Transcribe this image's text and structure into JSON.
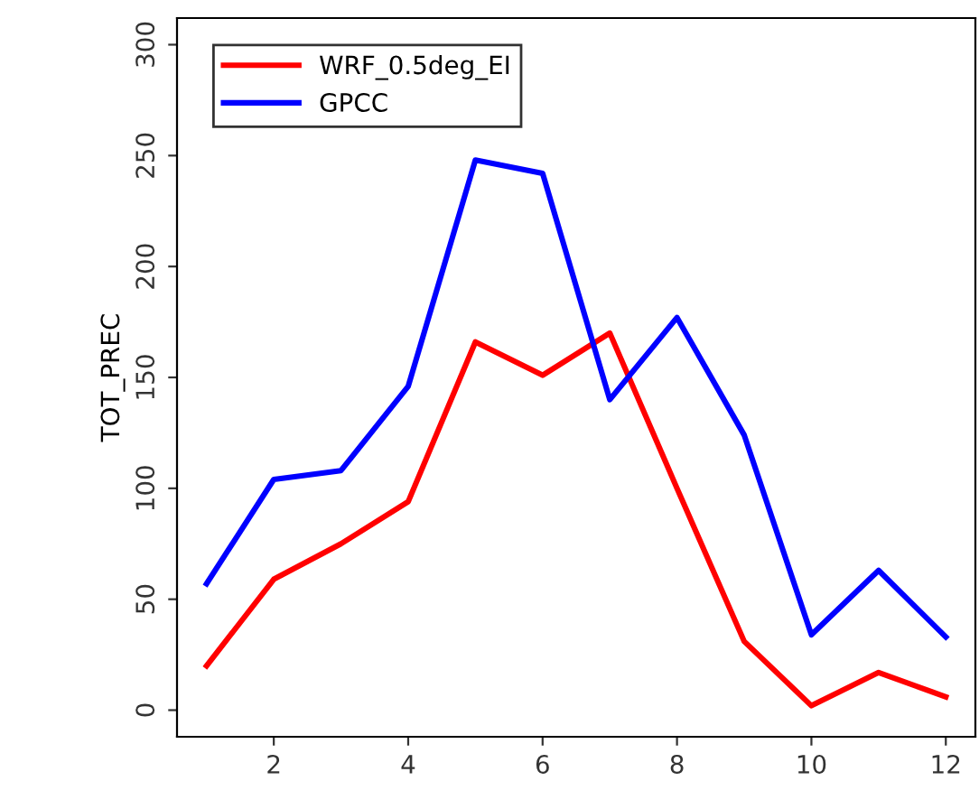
{
  "chart_data": {
    "type": "line",
    "ylabel": "TOT_PREC",
    "x": [
      1,
      2,
      3,
      4,
      5,
      6,
      7,
      8,
      9,
      10,
      11,
      12
    ],
    "series": [
      {
        "name": "WRF_0.5deg_EI",
        "color": "#ff0000",
        "values": [
          20,
          59,
          75,
          94,
          166,
          151,
          170,
          100,
          31,
          2,
          17,
          6
        ]
      },
      {
        "name": "GPCC",
        "color": "#0000ff",
        "values": [
          57,
          104,
          108,
          146,
          248,
          242,
          140,
          177,
          124,
          34,
          63,
          33
        ]
      }
    ],
    "xlim": [
      0.56,
      12.44
    ],
    "ylim": [
      -12,
      312
    ],
    "xticks": [
      2,
      4,
      6,
      8,
      10,
      12
    ],
    "yticks": [
      0,
      50,
      100,
      150,
      200,
      250,
      300
    ],
    "grid": false,
    "legend": "top left",
    "marker": "none",
    "line_style": "solid"
  }
}
